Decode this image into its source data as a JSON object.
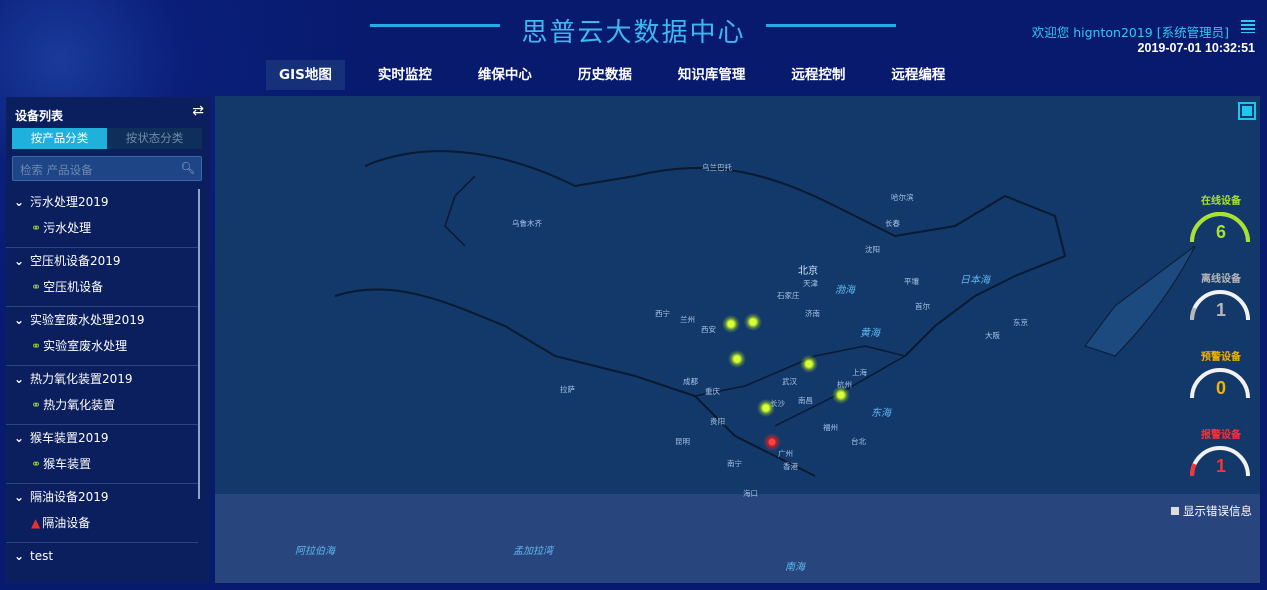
{
  "header": {
    "title": "思普云大数据中心",
    "welcome": "欢迎您  hignton2019 [系统管理员]",
    "datetime": "2019-07-01 10:32:51"
  },
  "nav": [
    "GIS地图",
    "实时监控",
    "维保中心",
    "历史数据",
    "知识库管理",
    "远程控制",
    "远程编程"
  ],
  "sidebar": {
    "title": "设备列表",
    "tabs": [
      "按产品分类",
      "按状态分类"
    ],
    "search_placeholder": "检索 产品设备",
    "groups": [
      {
        "name": "污水处理2019",
        "device": "污水处理",
        "status": "online"
      },
      {
        "name": "空压机设备2019",
        "device": "空压机设备",
        "status": "online"
      },
      {
        "name": "实验室废水处理2019",
        "device": "实验室废水处理",
        "status": "online"
      },
      {
        "name": "热力氧化装置2019",
        "device": "热力氧化装置",
        "status": "online"
      },
      {
        "name": "猴车装置2019",
        "device": "猴车装置",
        "status": "online"
      },
      {
        "name": "隔油设备2019",
        "device": "隔油设备",
        "status": "alarm"
      },
      {
        "name": "test"
      }
    ]
  },
  "map": {
    "labels": {
      "beijing": "北京",
      "tianjin": "天津",
      "shijiazhuang": "石家庄",
      "jinan": "济南",
      "xian": "西安",
      "lanzhou": "兰州",
      "xining": "西宁",
      "chengdu": "成都",
      "chongqing": "重庆",
      "wuhan": "武汉",
      "hangzhou": "杭州",
      "shanghai": "上海",
      "nanchang": "南昌",
      "changsha": "长沙",
      "guiyang": "贵阳",
      "kunming": "昆明",
      "nanning": "南宁",
      "guangzhou": "广州",
      "fuzhou": "福州",
      "taibei": "台北",
      "xianggang": "香港",
      "haikou": "海口",
      "lhasa": "拉萨",
      "urumqi": "乌鲁木齐",
      "shenyang": "沈阳",
      "changchun": "长春",
      "haerbin": "哈尔滨",
      "wulanbatuo": "乌兰巴托",
      "pyongyang": "平壤",
      "seoul": "首尔",
      "tokyo": "东京",
      "osaka": "大阪",
      "yellow_sea": "黄海",
      "bohai": "渤海",
      "east_sea": "东海",
      "japan_sea": "日本海",
      "south_sea": "南海",
      "arabian_sea": "阿拉伯海",
      "bengal_bay": "孟加拉湾"
    }
  },
  "stats": [
    {
      "label": "在线设备",
      "value": "6",
      "color": "#a6e22e",
      "fraction": 1.0
    },
    {
      "label": "离线设备",
      "value": "1",
      "color": "#b8b8b8",
      "fraction": 0.14
    },
    {
      "label": "预警设备",
      "value": "0",
      "color": "#f0b400",
      "fraction": 0
    },
    {
      "label": "报警设备",
      "value": "1",
      "color": "#ff3030",
      "fraction": 0.14
    }
  ],
  "show_errors_label": "显示错误信息"
}
